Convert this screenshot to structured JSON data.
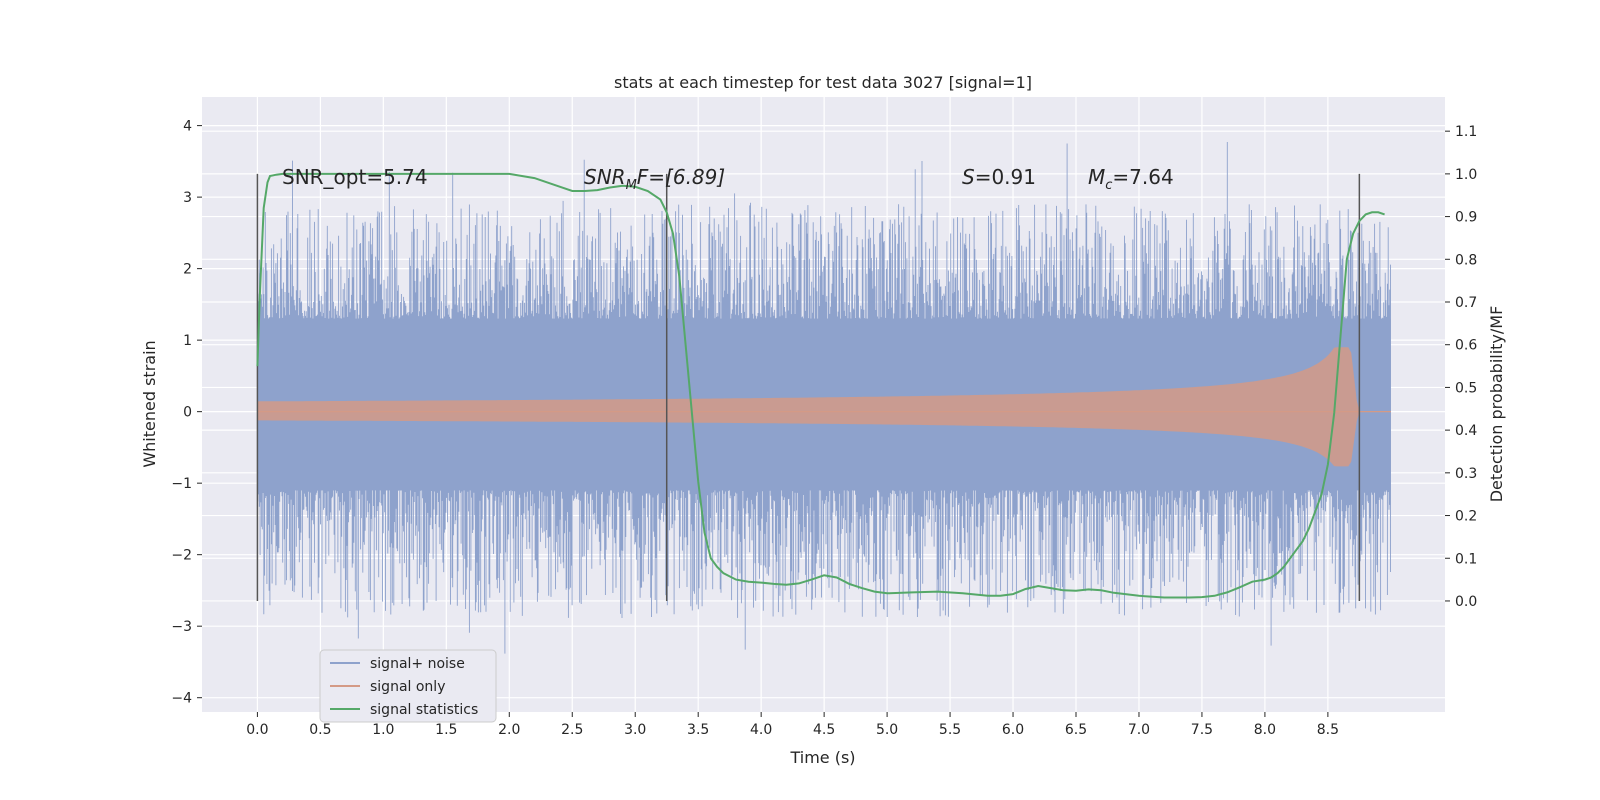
{
  "chart_data": {
    "type": "line",
    "title": "stats at each timestep for test data 3027 [signal=1]",
    "xlabel": "Time (s)",
    "ylabel": "Whitened strain",
    "y2label": "Detection probability/MF",
    "xlim": [
      -0.44,
      9.43
    ],
    "ylim": [
      -4.2,
      4.4
    ],
    "y2lim": [
      -0.26,
      1.18
    ],
    "x_ticks": [
      "0.0",
      "0.5",
      "1.0",
      "1.5",
      "2.0",
      "2.5",
      "3.0",
      "3.5",
      "4.0",
      "4.5",
      "5.0",
      "5.5",
      "6.0",
      "6.5",
      "7.0",
      "7.5",
      "8.0",
      "8.5"
    ],
    "y_ticks": [
      "−4",
      "−3",
      "−2",
      "−1",
      "0",
      "1",
      "2",
      "3",
      "4"
    ],
    "y2_ticks": [
      "0.0",
      "0.1",
      "0.2",
      "0.3",
      "0.4",
      "0.5",
      "0.6",
      "0.7",
      "0.8",
      "0.9",
      "1.0",
      "1.1"
    ],
    "grid": true,
    "legend_position": "bottom-left",
    "annotations": {
      "snr_opt": "SNR_opt=5.74",
      "snr_mf_main": "SNR",
      "snr_mf_sub": "M",
      "snr_mf_rest": "F=[6.89]",
      "s_main": "S",
      "s_rest": "=0.91",
      "mc_main": "M",
      "mc_sub": "c",
      "mc_rest": "=7.64"
    },
    "vertical_markers": [
      0.0,
      3.25,
      8.75
    ],
    "series": [
      {
        "name": "signal+ noise",
        "color": "#8ea2cc",
        "x_range": [
          0.0,
          9.0
        ],
        "core_band": [
          -1.1,
          1.3
        ],
        "extreme_range": [
          -3.65,
          4.05
        ]
      },
      {
        "name": "signal only",
        "color": "#d49a86",
        "x_range": [
          0.0,
          9.0
        ],
        "chirp_peak_time": 8.68,
        "peak_amplitude": 0.9
      },
      {
        "name": "signal statistics",
        "color": "#55a868",
        "axis": "right",
        "x": [
          0.0,
          0.02,
          0.05,
          0.08,
          0.1,
          0.15,
          0.2,
          0.3,
          0.5,
          1.0,
          1.5,
          2.0,
          2.2,
          2.4,
          2.5,
          2.6,
          2.7,
          2.8,
          2.9,
          3.0,
          3.1,
          3.2,
          3.25,
          3.3,
          3.35,
          3.4,
          3.45,
          3.5,
          3.55,
          3.6,
          3.65,
          3.7,
          3.8,
          3.9,
          4.0,
          4.1,
          4.2,
          4.3,
          4.4,
          4.5,
          4.6,
          4.7,
          4.8,
          4.9,
          5.0,
          5.2,
          5.4,
          5.6,
          5.8,
          5.9,
          6.0,
          6.1,
          6.2,
          6.3,
          6.4,
          6.5,
          6.6,
          6.7,
          6.8,
          7.0,
          7.2,
          7.4,
          7.5,
          7.6,
          7.7,
          7.8,
          7.9,
          8.0,
          8.05,
          8.1,
          8.15,
          8.2,
          8.3,
          8.35,
          8.4,
          8.45,
          8.5,
          8.55,
          8.6,
          8.65,
          8.7,
          8.75,
          8.8,
          8.85,
          8.9,
          8.95
        ],
        "values": [
          0.55,
          0.72,
          0.92,
          0.98,
          0.995,
          0.998,
          1.0,
          1.0,
          1.0,
          1.0,
          1.0,
          1.0,
          0.99,
          0.97,
          0.96,
          0.96,
          0.962,
          0.968,
          0.972,
          0.97,
          0.96,
          0.94,
          0.91,
          0.86,
          0.76,
          0.6,
          0.44,
          0.28,
          0.16,
          0.1,
          0.08,
          0.065,
          0.05,
          0.045,
          0.043,
          0.04,
          0.038,
          0.041,
          0.05,
          0.06,
          0.055,
          0.04,
          0.03,
          0.022,
          0.018,
          0.02,
          0.022,
          0.018,
          0.012,
          0.012,
          0.016,
          0.028,
          0.035,
          0.03,
          0.025,
          0.024,
          0.027,
          0.025,
          0.019,
          0.012,
          0.008,
          0.008,
          0.009,
          0.012,
          0.02,
          0.032,
          0.045,
          0.05,
          0.055,
          0.065,
          0.08,
          0.1,
          0.14,
          0.17,
          0.21,
          0.25,
          0.32,
          0.44,
          0.62,
          0.8,
          0.86,
          0.89,
          0.905,
          0.91,
          0.91,
          0.905
        ]
      }
    ]
  }
}
